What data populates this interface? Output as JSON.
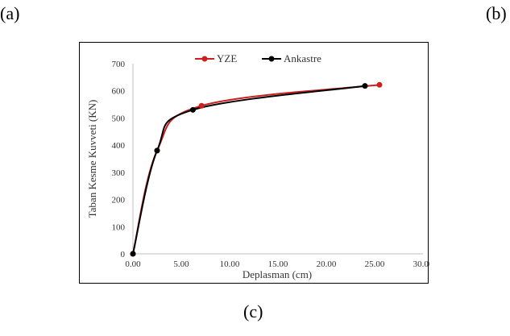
{
  "panel_labels": {
    "a": "(a)",
    "b": "(b)",
    "c": "(c)"
  },
  "chart_data": {
    "type": "line",
    "title": "",
    "xlabel": "Deplasman (cm)",
    "ylabel": "Taban Kesme Kuvveti (KN)",
    "xlim": [
      0,
      30
    ],
    "ylim": [
      0,
      700
    ],
    "xticks": [
      "0.00",
      "5.00",
      "10.00",
      "15.00",
      "20.00",
      "25.00",
      "30.00"
    ],
    "yticks": [
      "0",
      "100",
      "200",
      "300",
      "400",
      "500",
      "600",
      "700"
    ],
    "grid": false,
    "legend_position": "top",
    "series": [
      {
        "name": "YZE",
        "color": "#cc1f1f",
        "points": [
          [
            0,
            0
          ],
          [
            2.5,
            380
          ],
          [
            7.1,
            545
          ],
          [
            25.5,
            622
          ]
        ]
      },
      {
        "name": "Ankastre",
        "color": "#000000",
        "points": [
          [
            0,
            0
          ],
          [
            2.5,
            380
          ],
          [
            6.2,
            530
          ],
          [
            24.0,
            618
          ]
        ]
      }
    ]
  }
}
